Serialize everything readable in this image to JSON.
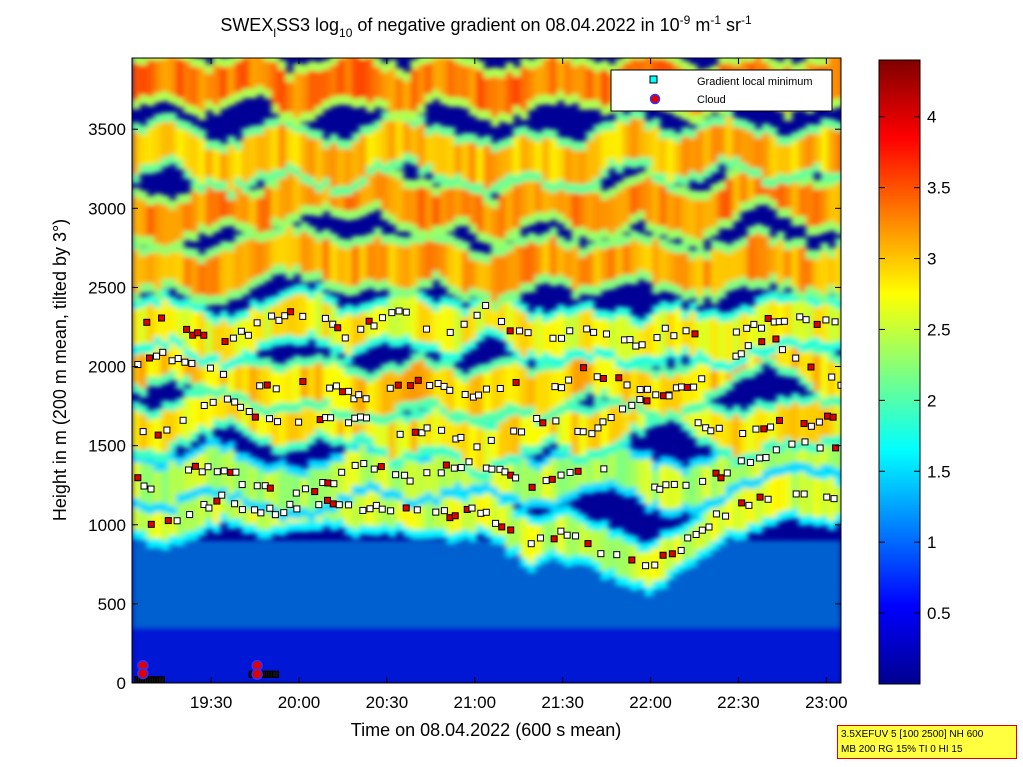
{
  "chart_data": {
    "type": "heatmap",
    "title": {
      "main": "SWEX",
      "sub": "l",
      "mid1": "SS3 log",
      "sub2": "10",
      "mid2": " of negative gradient on 08.04.2022 in 10",
      "sup1": "-9",
      "mid3": " m",
      "sup2": "-1",
      "mid4": " sr",
      "sup3": "-1"
    },
    "xlabel": "Time on 08.04.2022 (600 s mean)",
    "ylabel": "Height in m (200 m mean, tilted by 3°)",
    "x_range_minutes": [
      1143,
      1385
    ],
    "ylim": [
      0,
      3950
    ],
    "x_ticks": [
      {
        "label": "19:30",
        "minutes": 1170
      },
      {
        "label": "20:00",
        "minutes": 1200
      },
      {
        "label": "20:30",
        "minutes": 1230
      },
      {
        "label": "21:00",
        "minutes": 1260
      },
      {
        "label": "21:30",
        "minutes": 1290
      },
      {
        "label": "22:00",
        "minutes": 1320
      },
      {
        "label": "22:30",
        "minutes": 1350
      },
      {
        "label": "23:00",
        "minutes": 1380
      }
    ],
    "y_ticks": [
      0,
      500,
      1000,
      1500,
      2000,
      2500,
      3000,
      3500
    ],
    "colorbar": {
      "range": [
        0,
        4.4
      ],
      "ticks": [
        0.5,
        1,
        1.5,
        2,
        2.5,
        3,
        3.5,
        4
      ],
      "colormap": "jet"
    },
    "legend": {
      "position": "top-right",
      "entries": [
        {
          "label": "Gradient local minimum",
          "marker": "square",
          "color": "#00ffff"
        },
        {
          "label": "Cloud",
          "marker": "circle",
          "color": "#e00000",
          "edge": "#0000ff"
        }
      ]
    },
    "layers": [
      {
        "name": "layer-1",
        "level": 2.6,
        "points": [
          [
            1143,
            1080
          ],
          [
            1150,
            1000
          ],
          [
            1158,
            1050
          ],
          [
            1166,
            1110
          ],
          [
            1175,
            1180
          ],
          [
            1185,
            1080
          ],
          [
            1195,
            1100
          ],
          [
            1205,
            1150
          ],
          [
            1215,
            1120
          ],
          [
            1225,
            1100
          ],
          [
            1235,
            1120
          ],
          [
            1245,
            1080
          ],
          [
            1255,
            1050
          ],
          [
            1262,
            1100
          ],
          [
            1270,
            1000
          ],
          [
            1278,
            880
          ],
          [
            1286,
            940
          ],
          [
            1294,
            920
          ],
          [
            1302,
            850
          ],
          [
            1310,
            780
          ],
          [
            1318,
            720
          ],
          [
            1326,
            820
          ],
          [
            1334,
            900
          ],
          [
            1342,
            1040
          ],
          [
            1350,
            1100
          ],
          [
            1358,
            1160
          ],
          [
            1366,
            1220
          ],
          [
            1374,
            1180
          ],
          [
            1385,
            1150
          ]
        ]
      },
      {
        "name": "layer-2",
        "level": 2.5,
        "points": [
          [
            1143,
            1280
          ],
          [
            1152,
            1230
          ],
          [
            1160,
            1300
          ],
          [
            1168,
            1370
          ],
          [
            1176,
            1330
          ],
          [
            1184,
            1250
          ],
          [
            1192,
            1220
          ],
          [
            1200,
            1200
          ],
          [
            1210,
            1260
          ],
          [
            1220,
            1380
          ],
          [
            1230,
            1330
          ],
          [
            1240,
            1280
          ],
          [
            1250,
            1350
          ],
          [
            1260,
            1380
          ],
          [
            1270,
            1320
          ],
          [
            1280,
            1250
          ],
          [
            1290,
            1310
          ],
          [
            1300,
            1390
          ],
          [
            1310,
            1360
          ],
          [
            1320,
            1250
          ],
          [
            1330,
            1220
          ],
          [
            1340,
            1280
          ],
          [
            1350,
            1380
          ],
          [
            1360,
            1450
          ],
          [
            1370,
            1500
          ],
          [
            1385,
            1480
          ]
        ]
      },
      {
        "name": "layer-3",
        "level": 2.9,
        "points": [
          [
            1143,
            1600
          ],
          [
            1150,
            1560
          ],
          [
            1158,
            1650
          ],
          [
            1166,
            1720
          ],
          [
            1174,
            1780
          ],
          [
            1182,
            1740
          ],
          [
            1190,
            1640
          ],
          [
            1198,
            1620
          ],
          [
            1206,
            1700
          ],
          [
            1214,
            1640
          ],
          [
            1222,
            1700
          ],
          [
            1230,
            1540
          ],
          [
            1238,
            1560
          ],
          [
            1246,
            1620
          ],
          [
            1254,
            1540
          ],
          [
            1262,
            1460
          ],
          [
            1270,
            1560
          ],
          [
            1278,
            1620
          ],
          [
            1286,
            1680
          ],
          [
            1294,
            1560
          ],
          [
            1302,
            1600
          ],
          [
            1310,
            1700
          ],
          [
            1318,
            1780
          ],
          [
            1326,
            1820
          ],
          [
            1334,
            1700
          ],
          [
            1342,
            1600
          ],
          [
            1350,
            1550
          ],
          [
            1358,
            1620
          ],
          [
            1366,
            1650
          ],
          [
            1374,
            1640
          ],
          [
            1385,
            1720
          ]
        ]
      },
      {
        "name": "layer-4",
        "level": 3.0,
        "points": [
          [
            1143,
            1980
          ],
          [
            1152,
            2080
          ],
          [
            1160,
            2040
          ],
          [
            1168,
            2000
          ],
          [
            1176,
            1960
          ],
          [
            1184,
            1880
          ],
          [
            1192,
            1860
          ],
          [
            1200,
            1900
          ],
          [
            1208,
            1900
          ],
          [
            1216,
            1830
          ],
          [
            1224,
            1800
          ],
          [
            1232,
            1850
          ],
          [
            1240,
            1920
          ],
          [
            1248,
            1870
          ],
          [
            1256,
            1800
          ],
          [
            1264,
            1840
          ],
          [
            1272,
            1900
          ],
          [
            1280,
            1820
          ],
          [
            1288,
            1870
          ],
          [
            1296,
            1980
          ],
          [
            1304,
            1950
          ],
          [
            1312,
            1900
          ],
          [
            1320,
            1820
          ],
          [
            1328,
            1830
          ],
          [
            1336,
            1900
          ],
          [
            1344,
            2000
          ],
          [
            1352,
            2120
          ],
          [
            1360,
            2180
          ],
          [
            1368,
            2080
          ],
          [
            1376,
            1950
          ],
          [
            1385,
            1900
          ]
        ]
      },
      {
        "name": "layer-5",
        "level": 2.8,
        "points": [
          [
            1143,
            2250
          ],
          [
            1155,
            2300
          ],
          [
            1165,
            2200
          ],
          [
            1175,
            2150
          ],
          [
            1185,
            2250
          ],
          [
            1195,
            2320
          ],
          [
            1205,
            2330
          ],
          [
            1215,
            2200
          ],
          [
            1225,
            2280
          ],
          [
            1235,
            2330
          ],
          [
            1245,
            2250
          ],
          [
            1255,
            2220
          ],
          [
            1265,
            2380
          ],
          [
            1275,
            2200
          ],
          [
            1285,
            2180
          ],
          [
            1295,
            2230
          ],
          [
            1305,
            2200
          ],
          [
            1315,
            2150
          ],
          [
            1325,
            2230
          ],
          [
            1335,
            2200
          ],
          [
            1345,
            2150
          ],
          [
            1355,
            2250
          ],
          [
            1365,
            2300
          ],
          [
            1375,
            2280
          ],
          [
            1385,
            2260
          ]
        ]
      },
      {
        "name": "layer-6",
        "level": 3.2,
        "points": [
          [
            1143,
            2600
          ],
          [
            1155,
            2650
          ],
          [
            1165,
            2550
          ],
          [
            1175,
            2600
          ],
          [
            1185,
            2700
          ],
          [
            1195,
            2750
          ],
          [
            1205,
            2700
          ],
          [
            1215,
            2620
          ],
          [
            1225,
            2680
          ],
          [
            1235,
            2620
          ],
          [
            1245,
            2700
          ],
          [
            1255,
            2600
          ],
          [
            1265,
            2550
          ],
          [
            1275,
            2640
          ],
          [
            1285,
            2700
          ],
          [
            1295,
            2600
          ],
          [
            1305,
            2650
          ],
          [
            1315,
            2700
          ],
          [
            1325,
            2630
          ],
          [
            1335,
            2570
          ],
          [
            1345,
            2620
          ],
          [
            1355,
            2700
          ],
          [
            1365,
            2650
          ],
          [
            1375,
            2580
          ],
          [
            1385,
            2620
          ]
        ]
      },
      {
        "name": "layer-7",
        "level": 3.3,
        "points": [
          [
            1143,
            2950
          ],
          [
            1155,
            2880
          ],
          [
            1165,
            3000
          ],
          [
            1175,
            3060
          ],
          [
            1185,
            2950
          ],
          [
            1195,
            3100
          ],
          [
            1205,
            3150
          ],
          [
            1215,
            3080
          ],
          [
            1225,
            3150
          ],
          [
            1235,
            3020
          ],
          [
            1245,
            2980
          ],
          [
            1255,
            3050
          ],
          [
            1265,
            2900
          ],
          [
            1275,
            3050
          ],
          [
            1285,
            3100
          ],
          [
            1295,
            3000
          ],
          [
            1305,
            2950
          ],
          [
            1315,
            3080
          ],
          [
            1325,
            3000
          ],
          [
            1335,
            2920
          ],
          [
            1345,
            3050
          ],
          [
            1355,
            3200
          ],
          [
            1365,
            3100
          ],
          [
            1375,
            3000
          ],
          [
            1385,
            3050
          ]
        ]
      },
      {
        "name": "layer-8",
        "level": 3.1,
        "points": [
          [
            1143,
            3350
          ],
          [
            1155,
            3450
          ],
          [
            1165,
            3300
          ],
          [
            1175,
            3250
          ],
          [
            1185,
            3350
          ],
          [
            1195,
            3400
          ],
          [
            1205,
            3300
          ],
          [
            1215,
            3250
          ],
          [
            1225,
            3400
          ],
          [
            1235,
            3450
          ],
          [
            1245,
            3350
          ],
          [
            1255,
            3300
          ],
          [
            1265,
            3250
          ],
          [
            1275,
            3350
          ],
          [
            1285,
            3300
          ],
          [
            1295,
            3250
          ],
          [
            1305,
            3400
          ],
          [
            1315,
            3450
          ],
          [
            1325,
            3300
          ],
          [
            1335,
            3350
          ],
          [
            1345,
            3450
          ],
          [
            1355,
            3350
          ],
          [
            1365,
            3300
          ],
          [
            1375,
            3380
          ],
          [
            1385,
            3350
          ]
        ]
      },
      {
        "name": "layer-9",
        "level": 3.4,
        "points": [
          [
            1143,
            3800
          ],
          [
            1155,
            3850
          ],
          [
            1165,
            3750
          ],
          [
            1175,
            3800
          ],
          [
            1185,
            3900
          ],
          [
            1195,
            3700
          ],
          [
            1205,
            3750
          ],
          [
            1215,
            3850
          ],
          [
            1225,
            3800
          ],
          [
            1235,
            3700
          ],
          [
            1245,
            3850
          ],
          [
            1255,
            3800
          ],
          [
            1265,
            3700
          ],
          [
            1275,
            3750
          ],
          [
            1285,
            3850
          ],
          [
            1295,
            3800
          ],
          [
            1305,
            3750
          ],
          [
            1315,
            3850
          ],
          [
            1325,
            3800
          ],
          [
            1335,
            3700
          ],
          [
            1345,
            3800
          ],
          [
            1355,
            3850
          ],
          [
            1365,
            3750
          ],
          [
            1375,
            3800
          ],
          [
            1385,
            3850
          ]
        ]
      }
    ],
    "near_ground_minima": [
      {
        "x_range": [
          1145,
          1153
        ],
        "height": 20
      },
      {
        "x_range": [
          1184,
          1192
        ],
        "height": 55
      }
    ],
    "near_ground_clouds": [
      {
        "x": 1145,
        "height": 110
      },
      {
        "x": 1145,
        "height": 60
      },
      {
        "x": 1184,
        "height": 110
      },
      {
        "x": 1184,
        "height": 55
      }
    ]
  },
  "info_box": {
    "line1": "3.5XEFUV 5 [100 2500] NH 600",
    "line2": "MB 200 RG 15% TI 0 HI 15"
  }
}
